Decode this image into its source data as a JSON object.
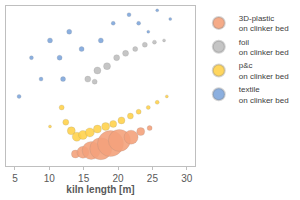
{
  "chart_data": {
    "type": "scatter",
    "marker": "bubble",
    "x_label": "kiln length [m]",
    "xlim": [
      3.7,
      31.2
    ],
    "xticks": [
      5,
      10,
      15,
      20,
      25,
      30
    ],
    "ylim": [
      0,
      100
    ],
    "yticks": [],
    "tick_labels": "x",
    "grid": false,
    "legend": "right",
    "series": [
      {
        "name": "3D-plastic on clinker bed",
        "color": "#f4a27c",
        "x": [
          13.8,
          14.9,
          16.1,
          17.5,
          18.9,
          20.2,
          21.9,
          23.3,
          24.6
        ],
        "values": [
          7.5,
          8.6,
          9.7,
          10.8,
          14.0,
          16.0,
          18.0,
          21.5,
          23.7
        ],
        "sizes": [
          8,
          12,
          18,
          22,
          26,
          22,
          14,
          8,
          5
        ]
      },
      {
        "name": "foil on clinker bed",
        "color": "#bfbfbf",
        "x": [
          15.6,
          16.6,
          17.0,
          18.4,
          19.8,
          21.1,
          22.5,
          23.9,
          25.3,
          26.7
        ],
        "values": [
          54.3,
          52.7,
          59.7,
          62.4,
          67.7,
          70.4,
          73.1,
          75.8,
          77.4,
          78.5
        ],
        "sizes": [
          6,
          5,
          7,
          7,
          6,
          6,
          5,
          5,
          4,
          3
        ]
      },
      {
        "name": "p&c on clinker bed",
        "color": "#ffd24d",
        "x": [
          10.1,
          11.8,
          12.4,
          13.2,
          14.0,
          14.9,
          15.9,
          17.0,
          18.2,
          19.3,
          20.5,
          21.8,
          23.0,
          24.4,
          25.7,
          27.1
        ],
        "values": [
          24.7,
          36.6,
          27.4,
          22.0,
          18.3,
          19.4,
          21.0,
          23.1,
          24.7,
          26.3,
          28.5,
          31.2,
          33.9,
          36.6,
          39.8,
          43.5
        ],
        "sizes": [
          3,
          5,
          6,
          8,
          9,
          9,
          9,
          8,
          8,
          7,
          7,
          6,
          5,
          4,
          4,
          3
        ]
      },
      {
        "name": "textile on clinker bed",
        "color": "#7fa7dc",
        "x": [
          5.6,
          7.4,
          8.8,
          10.1,
          11.5,
          12.0,
          12.9,
          14.7,
          17.5,
          19.3,
          21.6,
          23.0,
          24.4,
          25.7,
          27.6
        ],
        "values": [
          43.5,
          67.7,
          54.3,
          78.5,
          67.7,
          54.3,
          83.9,
          73.1,
          78.5,
          89.2,
          94.6,
          89.2,
          83.9,
          97.3,
          91.9
        ],
        "sizes": [
          4,
          4,
          4,
          5,
          5,
          5,
          5,
          5,
          5,
          4,
          4,
          4,
          3,
          3,
          3
        ]
      }
    ]
  }
}
